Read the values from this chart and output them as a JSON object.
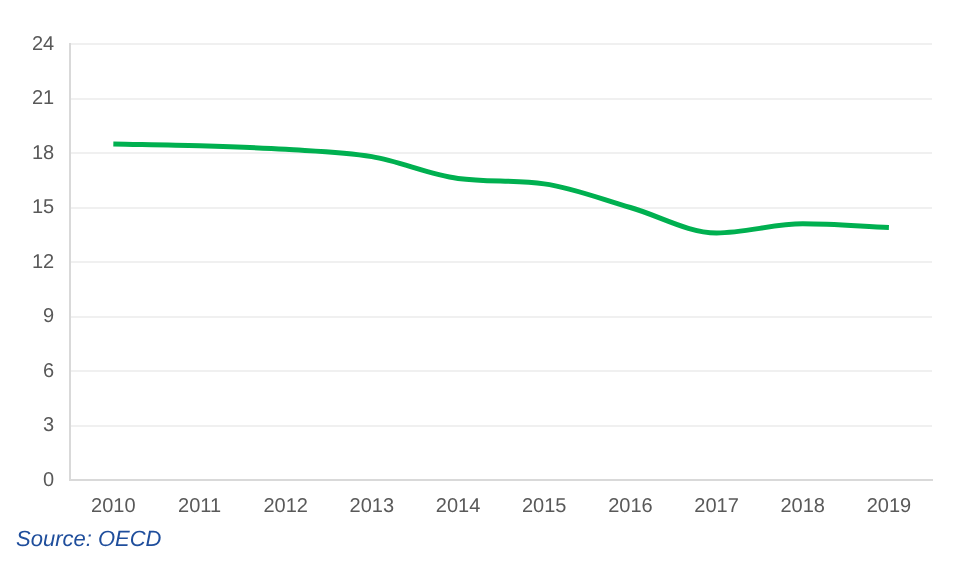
{
  "chart_data": {
    "type": "line",
    "categories": [
      "2010",
      "2011",
      "2012",
      "2013",
      "2014",
      "2015",
      "2016",
      "2017",
      "2018",
      "2019"
    ],
    "series": [
      {
        "color": "#00b050",
        "values": [
          18.5,
          18.4,
          18.2,
          17.8,
          16.6,
          16.3,
          15.0,
          13.6,
          14.1,
          13.9
        ]
      }
    ],
    "ylim": [
      0,
      24
    ],
    "yticks": [
      0,
      3,
      6,
      9,
      12,
      15,
      18,
      21,
      24
    ],
    "grid": "y",
    "legend": false,
    "marker": "none",
    "line_style": "solid",
    "annotations": [
      "Source: OECD"
    ]
  }
}
